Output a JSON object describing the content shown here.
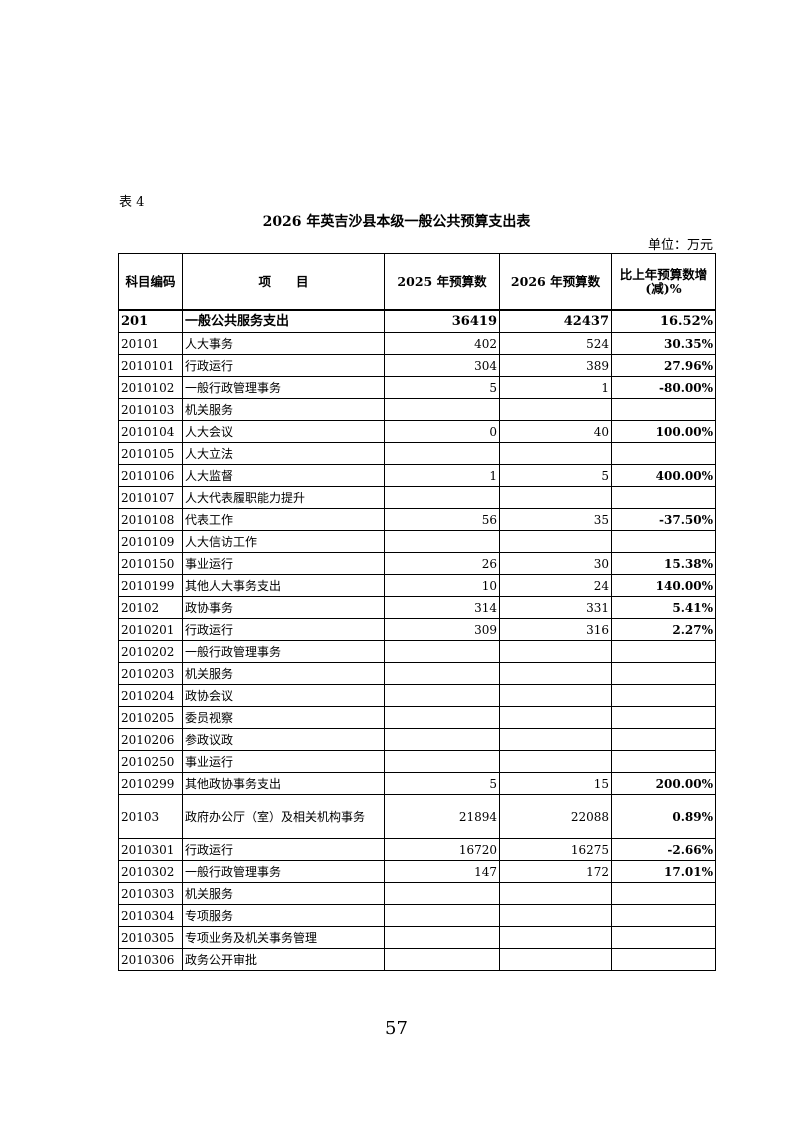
{
  "table_label": "表 4",
  "title": "2026 年英吉沙县本级一般公共预算支出表",
  "unit": "单位：万元",
  "headers": [
    "科目编码",
    "项　　目",
    "2025 年预算数",
    "2026 年预算数",
    "比上年预算数增(减)%"
  ],
  "rows": [
    {
      "code": "201",
      "name": "一般公共服务支出",
      "y2025": "36419",
      "y2026": "42437",
      "change": "16.52%"
    },
    {
      "code": "20101",
      "name": "人大事务",
      "y2025": "402",
      "y2026": "524",
      "change": "30.35%"
    },
    {
      "code": "2010101",
      "name": "行政运行",
      "y2025": "304",
      "y2026": "389",
      "change": "27.96%"
    },
    {
      "code": "2010102",
      "name": "一般行政管理事务",
      "y2025": "5",
      "y2026": "1",
      "change": "-80.00%"
    },
    {
      "code": "2010103",
      "name": "机关服务",
      "y2025": "",
      "y2026": "",
      "change": ""
    },
    {
      "code": "2010104",
      "name": "人大会议",
      "y2025": "0",
      "y2026": "40",
      "change": "100.00%"
    },
    {
      "code": "2010105",
      "name": "人大立法",
      "y2025": "",
      "y2026": "",
      "change": ""
    },
    {
      "code": "2010106",
      "name": "人大监督",
      "y2025": "1",
      "y2026": "5",
      "change": "400.00%"
    },
    {
      "code": "2010107",
      "name": "人大代表履职能力提升",
      "y2025": "",
      "y2026": "",
      "change": ""
    },
    {
      "code": "2010108",
      "name": "代表工作",
      "y2025": "56",
      "y2026": "35",
      "change": "-37.50%"
    },
    {
      "code": "2010109",
      "name": "人大信访工作",
      "y2025": "",
      "y2026": "",
      "change": ""
    },
    {
      "code": "2010150",
      "name": "事业运行",
      "y2025": "26",
      "y2026": "30",
      "change": "15.38%"
    },
    {
      "code": "2010199",
      "name": "其他人大事务支出",
      "y2025": "10",
      "y2026": "24",
      "change": "140.00%"
    },
    {
      "code": "20102",
      "name": "政协事务",
      "y2025": "314",
      "y2026": "331",
      "change": "5.41%"
    },
    {
      "code": "2010201",
      "name": "行政运行",
      "y2025": "309",
      "y2026": "316",
      "change": "2.27%"
    },
    {
      "code": "2010202",
      "name": "一般行政管理事务",
      "y2025": "",
      "y2026": "",
      "change": ""
    },
    {
      "code": "2010203",
      "name": "机关服务",
      "y2025": "",
      "y2026": "",
      "change": ""
    },
    {
      "code": "2010204",
      "name": "政协会议",
      "y2025": "",
      "y2026": "",
      "change": ""
    },
    {
      "code": "2010205",
      "name": "委员视察",
      "y2025": "",
      "y2026": "",
      "change": ""
    },
    {
      "code": "2010206",
      "name": "参政议政",
      "y2025": "",
      "y2026": "",
      "change": ""
    },
    {
      "code": "2010250",
      "name": "事业运行",
      "y2025": "",
      "y2026": "",
      "change": ""
    },
    {
      "code": "2010299",
      "name": "其他政协事务支出",
      "y2025": "5",
      "y2026": "15",
      "change": "200.00%"
    },
    {
      "code": "20103",
      "name": "政府办公厅（室）及相关机构事务",
      "y2025": "21894",
      "y2026": "22088",
      "change": "0.89%"
    },
    {
      "code": "2010301",
      "name": "行政运行",
      "y2025": "16720",
      "y2026": "16275",
      "change": "-2.66%"
    },
    {
      "code": "2010302",
      "name": "一般行政管理事务",
      "y2025": "147",
      "y2026": "172",
      "change": "17.01%"
    },
    {
      "code": "2010303",
      "name": "机关服务",
      "y2025": "",
      "y2026": "",
      "change": ""
    },
    {
      "code": "2010304",
      "name": "专项服务",
      "y2025": "",
      "y2026": "",
      "change": ""
    },
    {
      "code": "2010305",
      "name": "专项业务及机关事务管理",
      "y2025": "",
      "y2026": "",
      "change": ""
    },
    {
      "code": "2010306",
      "name": "政务公开审批",
      "y2025": "",
      "y2026": "",
      "change": ""
    }
  ],
  "page_number": "57"
}
